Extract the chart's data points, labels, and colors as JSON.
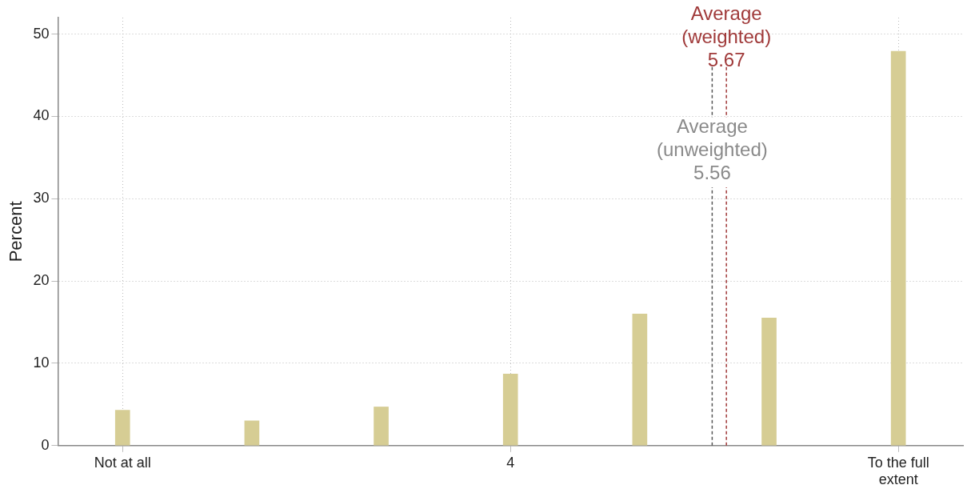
{
  "chart_data": {
    "type": "bar",
    "ylabel": "Percent",
    "categories": [
      "Not at all",
      null,
      null,
      "4",
      null,
      null,
      "To the full\nextent"
    ],
    "values": [
      4.3,
      3.0,
      4.7,
      8.7,
      16.0,
      15.5,
      47.9
    ],
    "color": "#d6cd94",
    "ylim": [
      0,
      52
    ],
    "yticks": [
      0,
      10,
      20,
      30,
      40,
      50
    ],
    "grid": true,
    "legend": false,
    "annotations": [
      "Average\n(unweighted)\n5.56",
      "Average\n(weighted)\n5.67"
    ]
  }
}
